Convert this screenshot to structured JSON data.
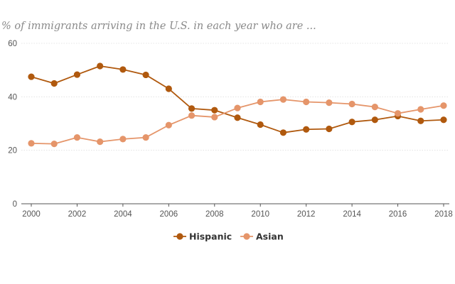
{
  "chart_data": {
    "type": "line",
    "title": "% of immigrants arriving in the U.S. in each year who are ...",
    "xlabel": "",
    "ylabel": "",
    "x": [
      2000,
      2001,
      2002,
      2003,
      2004,
      2005,
      2006,
      2007,
      2008,
      2009,
      2010,
      2011,
      2012,
      2013,
      2014,
      2015,
      2016,
      2017,
      2018
    ],
    "x_ticks": [
      "2000",
      "2002",
      "2004",
      "2006",
      "2008",
      "2010",
      "2012",
      "2014",
      "2016",
      "2018"
    ],
    "y_ticks": [
      "0",
      "20",
      "40",
      "60"
    ],
    "ylim": [
      0,
      60
    ],
    "xlim": [
      2000,
      2018
    ],
    "grid": true,
    "legend_position": "bottom-center",
    "series": [
      {
        "name": "Hispanic",
        "color": "#b0590e",
        "values": [
          47.5,
          45,
          48.3,
          51.5,
          50.2,
          48.2,
          43,
          35.6,
          35,
          32.2,
          29.6,
          26.6,
          27.8,
          28,
          30.6,
          31.4,
          32.8,
          31,
          31.4
        ]
      },
      {
        "name": "Asian",
        "color": "#e5956a",
        "values": [
          22.6,
          22.4,
          24.8,
          23.2,
          24.2,
          24.8,
          29.4,
          33,
          32.4,
          35.8,
          38.1,
          39,
          38.1,
          37.8,
          37.3,
          36.2,
          33.8,
          35.3,
          36.7
        ]
      }
    ]
  }
}
